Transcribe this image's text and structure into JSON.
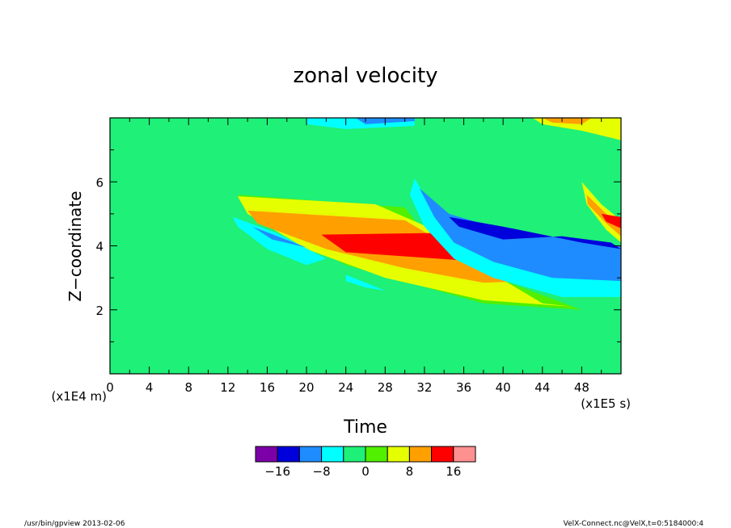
{
  "chart_data": {
    "type": "heatmap",
    "title": "zonal velocity",
    "xlabel": "Time",
    "ylabel": "Z−coordinate",
    "x_unit": "(x1E5 s)",
    "y_unit": "(x1E4 m)",
    "xlim": [
      0,
      52
    ],
    "ylim": [
      0,
      8
    ],
    "x_ticks": [
      0,
      4,
      8,
      12,
      16,
      20,
      24,
      28,
      32,
      36,
      40,
      44,
      48
    ],
    "x_tick_labels": [
      "0",
      "4",
      "8",
      "12",
      "16",
      "20",
      "24",
      "28",
      "32",
      "36",
      "40",
      "44",
      "48"
    ],
    "y_ticks": [
      2,
      4,
      6
    ],
    "y_tick_labels": [
      "2",
      "4",
      "6"
    ],
    "colorbar": {
      "colors": [
        "#7c00a8",
        "#0000dc",
        "#1e8cff",
        "#00ffff",
        "#1ef078",
        "#50f000",
        "#e6ff00",
        "#ffa000",
        "#ff0000",
        "#ff9090"
      ],
      "bounds": [
        -20,
        -16,
        -12,
        -8,
        -4,
        0,
        4,
        8,
        12,
        16,
        20
      ],
      "tick_values": [
        -16,
        -8,
        0,
        8,
        16
      ],
      "tick_labels": [
        "−16",
        "−8",
        "0",
        "8",
        "16"
      ]
    },
    "background_color": "#1ef078",
    "background_value": 0,
    "regions": [
      {
        "value": 2,
        "color": "#50f000",
        "polygon": [
          [
            13,
            5.6
          ],
          [
            30,
            5.2
          ],
          [
            34,
            3.6
          ],
          [
            48,
            2.0
          ],
          [
            38,
            2.2
          ],
          [
            24,
            3.4
          ],
          [
            15,
            4.9
          ]
        ]
      },
      {
        "value": 6,
        "color": "#e6ff00",
        "polygon": [
          [
            13,
            5.55
          ],
          [
            27,
            5.3
          ],
          [
            33,
            4.5
          ],
          [
            38,
            3.3
          ],
          [
            44,
            2.2
          ],
          [
            47,
            2.1
          ],
          [
            38,
            2.3
          ],
          [
            28,
            3.0
          ],
          [
            20,
            3.9
          ],
          [
            14,
            5.0
          ]
        ]
      },
      {
        "value": 10,
        "color": "#ffa000",
        "polygon": [
          [
            14,
            5.1
          ],
          [
            30,
            4.8
          ],
          [
            35,
            3.9
          ],
          [
            43,
            2.9
          ],
          [
            38,
            2.85
          ],
          [
            30,
            3.3
          ],
          [
            22,
            3.9
          ],
          [
            15,
            4.7
          ]
        ]
      },
      {
        "value": 14,
        "color": "#ff0000",
        "polygon": [
          [
            21.5,
            4.35
          ],
          [
            33,
            4.4
          ],
          [
            38,
            3.5
          ],
          [
            31,
            3.65
          ],
          [
            24,
            3.8
          ]
        ]
      },
      {
        "value": -6,
        "color": "#00ffff",
        "polygon": [
          [
            12.5,
            4.9
          ],
          [
            17,
            4.4
          ],
          [
            22,
            3.6
          ],
          [
            20,
            3.4
          ],
          [
            16,
            3.9
          ],
          [
            13,
            4.6
          ]
        ]
      },
      {
        "value": -10,
        "color": "#1e8cff",
        "polygon": [
          [
            14.5,
            4.6
          ],
          [
            20,
            3.95
          ],
          [
            16.5,
            4.2
          ]
        ]
      },
      {
        "value": -6,
        "color": "#00ffff",
        "polygon": [
          [
            24,
            3.1
          ],
          [
            28,
            2.6
          ],
          [
            26,
            2.7
          ],
          [
            24,
            2.9
          ]
        ]
      },
      {
        "value": -6,
        "color": "#00ffff",
        "polygon": [
          [
            31,
            6.1
          ],
          [
            34,
            4.6
          ],
          [
            40,
            3.6
          ],
          [
            52,
            3.5
          ],
          [
            52,
            2.4
          ],
          [
            46,
            2.4
          ],
          [
            39,
            3.0
          ],
          [
            35,
            3.6
          ],
          [
            32,
            4.6
          ],
          [
            30.5,
            5.6
          ]
        ]
      },
      {
        "value": -10,
        "color": "#1e8cff",
        "polygon": [
          [
            31.5,
            5.8
          ],
          [
            34.5,
            5.0
          ],
          [
            40,
            4.5
          ],
          [
            52,
            4.0
          ],
          [
            52,
            2.9
          ],
          [
            45,
            3.0
          ],
          [
            39,
            3.5
          ],
          [
            35,
            4.1
          ],
          [
            33,
            4.9
          ]
        ]
      },
      {
        "value": -14,
        "color": "#0000dc",
        "polygon": [
          [
            34.5,
            4.9
          ],
          [
            40,
            4.6
          ],
          [
            48,
            4.1
          ],
          [
            52,
            3.9
          ],
          [
            51,
            4.1
          ],
          [
            46,
            4.3
          ],
          [
            40,
            4.2
          ],
          [
            35.5,
            4.6
          ]
        ]
      },
      {
        "value": 6,
        "color": "#e6ff00",
        "polygon": [
          [
            48,
            6.0
          ],
          [
            50,
            5.3
          ],
          [
            52,
            4.8
          ],
          [
            52,
            4.1
          ],
          [
            50.5,
            4.5
          ],
          [
            48.5,
            5.3
          ]
        ]
      },
      {
        "value": 10,
        "color": "#ffa000",
        "polygon": [
          [
            48.5,
            5.6
          ],
          [
            50.5,
            5.0
          ],
          [
            52,
            4.6
          ],
          [
            52,
            4.3
          ],
          [
            50.5,
            4.7
          ],
          [
            48.6,
            5.3
          ]
        ]
      },
      {
        "value": 14,
        "color": "#ff0000",
        "polygon": [
          [
            50,
            5.0
          ],
          [
            52,
            4.9
          ],
          [
            52,
            4.55
          ],
          [
            50.5,
            4.75
          ]
        ]
      },
      {
        "value": -6,
        "color": "#00ffff",
        "polygon": [
          [
            20,
            8
          ],
          [
            31,
            8
          ],
          [
            31,
            7.75
          ],
          [
            24,
            7.65
          ],
          [
            20,
            7.8
          ]
        ]
      },
      {
        "value": -10,
        "color": "#1e8cff",
        "polygon": [
          [
            25,
            8
          ],
          [
            31,
            8
          ],
          [
            31,
            7.9
          ],
          [
            26,
            7.8
          ]
        ]
      },
      {
        "value": 6,
        "color": "#e6ff00",
        "polygon": [
          [
            43,
            8
          ],
          [
            52,
            8
          ],
          [
            52,
            7.3
          ],
          [
            48,
            7.6
          ],
          [
            44,
            7.8
          ]
        ]
      },
      {
        "value": 10,
        "color": "#ffa000",
        "polygon": [
          [
            44,
            8
          ],
          [
            49,
            8
          ],
          [
            48,
            7.8
          ],
          [
            45,
            7.85
          ]
        ]
      }
    ]
  },
  "footer": {
    "left": "/usr/bin/gpview  2013-02-06",
    "right": "VelX-Connect.nc@VelX,t=0:5184000:4"
  }
}
